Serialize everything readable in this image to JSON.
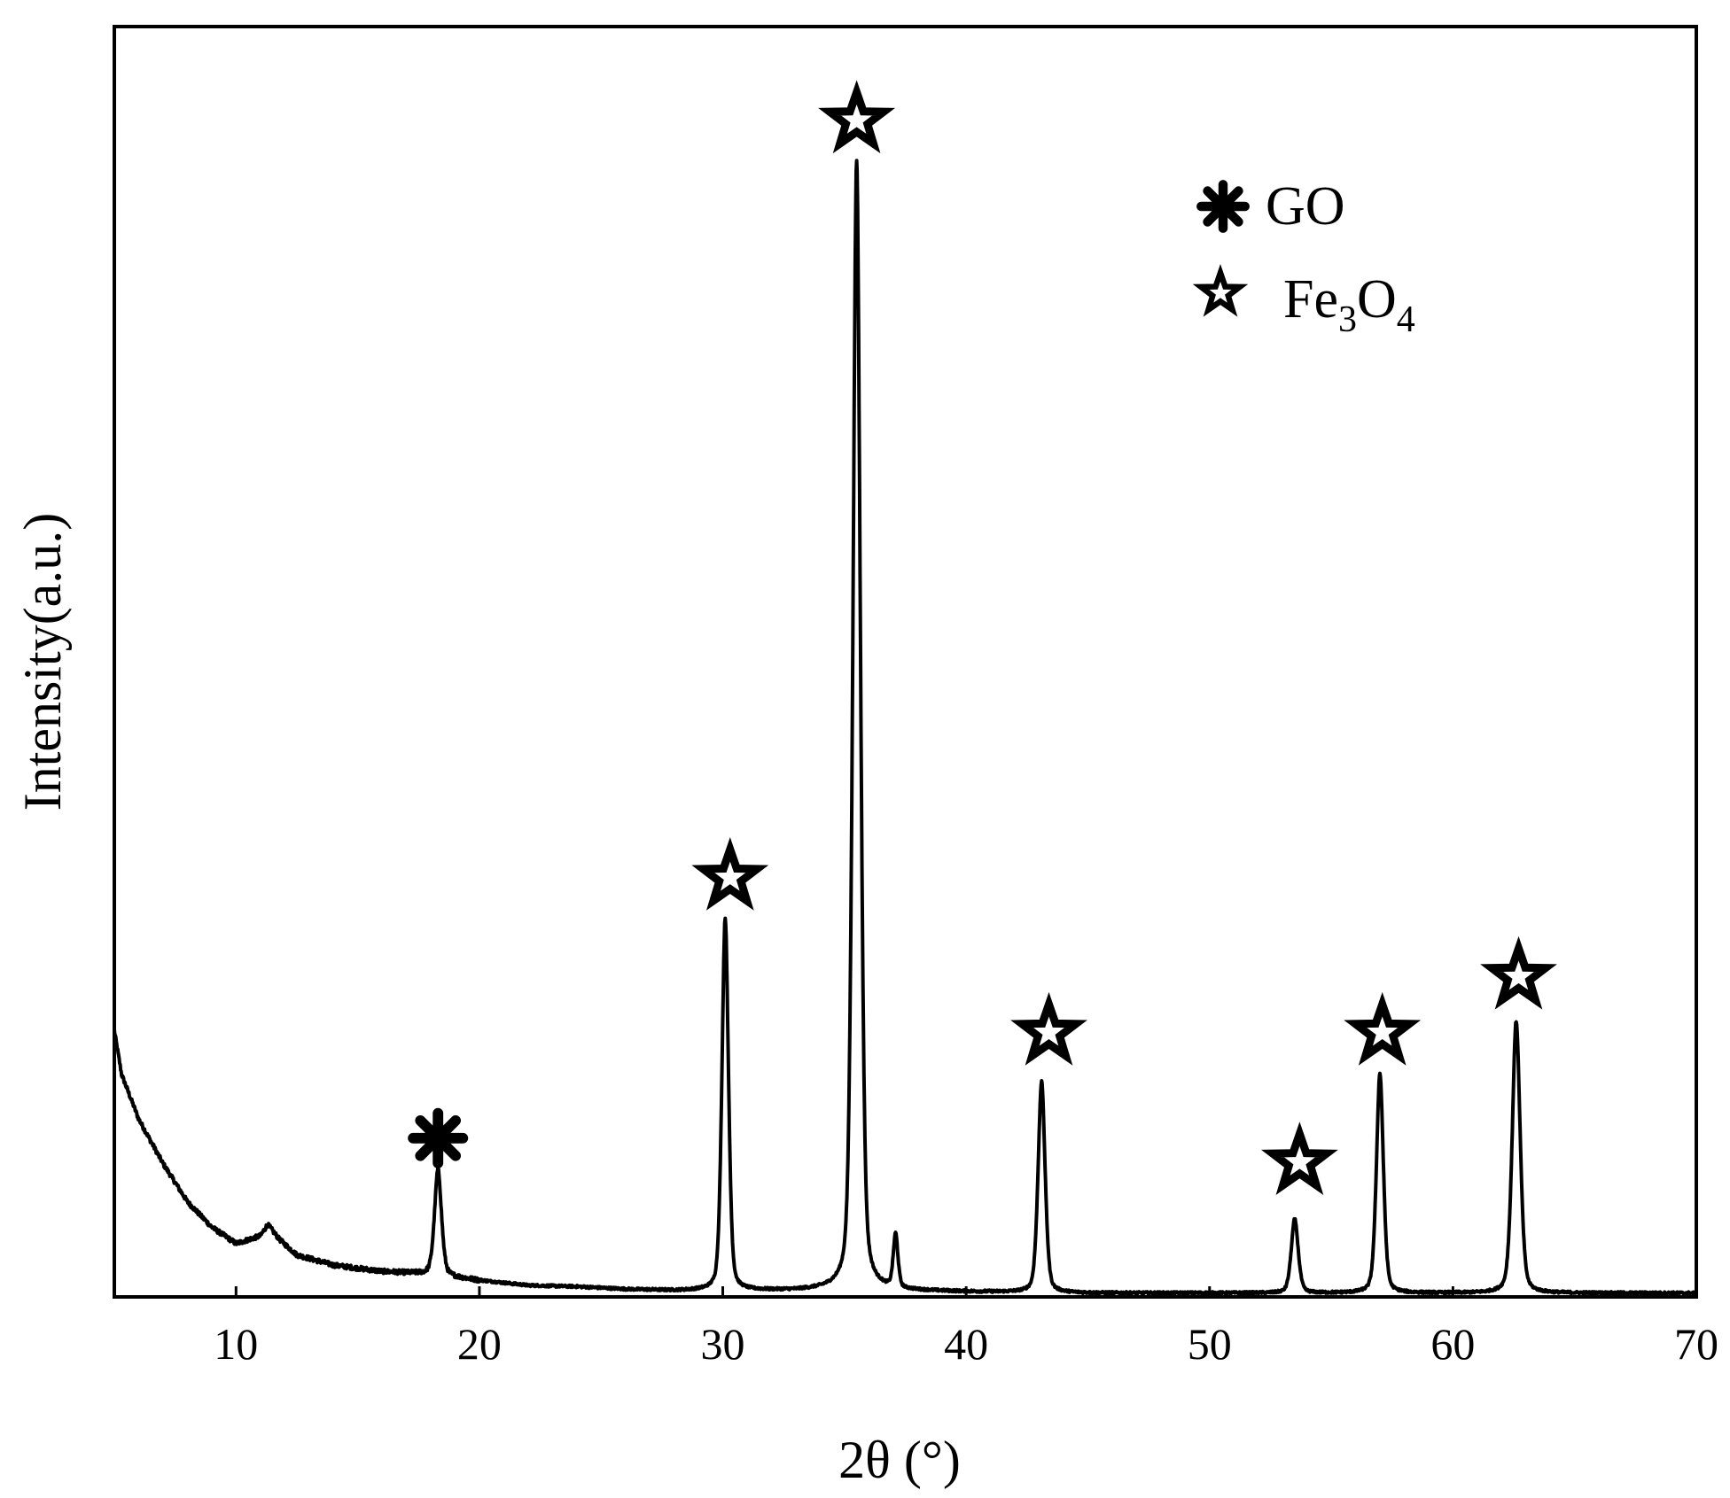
{
  "chart_data": {
    "type": "line",
    "title": "",
    "xlabel": "2θ (°)",
    "ylabel": "Intensity(a.u.)",
    "xlim": [
      5,
      70
    ],
    "ylim": [
      0,
      100
    ],
    "x_ticks": [
      10,
      20,
      30,
      40,
      50,
      60,
      70
    ],
    "y_ticks": [],
    "grid": false,
    "legend_position": "top-right",
    "legend": [
      {
        "marker": "asterisk-icon",
        "label": "GO"
      },
      {
        "marker": "star-icon",
        "label_main": "Fe",
        "label_sub1": "3",
        "label_mid": "O",
        "label_sub2": "4"
      }
    ],
    "baseline": [
      [
        5,
        21
      ],
      [
        5.3,
        17.5
      ],
      [
        6,
        14
      ],
      [
        7,
        10.5
      ],
      [
        8,
        7.5
      ],
      [
        9,
        5.5
      ],
      [
        10,
        4.2
      ],
      [
        11,
        4.8
      ],
      [
        11.3,
        5.7
      ],
      [
        11.8,
        4.5
      ],
      [
        12.5,
        3.3
      ],
      [
        14,
        2.5
      ],
      [
        16,
        2.0
      ],
      [
        18,
        1.8
      ],
      [
        20,
        1.3
      ],
      [
        22,
        0.9
      ],
      [
        24,
        0.8
      ],
      [
        26,
        0.6
      ],
      [
        28,
        0.5
      ],
      [
        30,
        0.5
      ],
      [
        33,
        0.5
      ],
      [
        35,
        0.6
      ],
      [
        37,
        0.5
      ],
      [
        40,
        0.4
      ],
      [
        45,
        0.3
      ],
      [
        50,
        0.3
      ],
      [
        55,
        0.3
      ],
      [
        60,
        0.3
      ],
      [
        65,
        0.3
      ],
      [
        70,
        0.3
      ]
    ],
    "peaks": [
      {
        "x": 18.3,
        "height": 8.3,
        "width": 0.15,
        "phase": "GO"
      },
      {
        "x": 30.1,
        "height": 29.3,
        "width": 0.14,
        "phase": "Fe3O4"
      },
      {
        "x": 35.5,
        "height": 88.9,
        "width": 0.16,
        "phase": "Fe3O4"
      },
      {
        "x": 37.1,
        "height": 4.2,
        "width": 0.1,
        "phase": ""
      },
      {
        "x": 43.1,
        "height": 16.6,
        "width": 0.15,
        "phase": "Fe3O4"
      },
      {
        "x": 53.5,
        "height": 5.8,
        "width": 0.15,
        "phase": "Fe3O4"
      },
      {
        "x": 57.0,
        "height": 17.3,
        "width": 0.15,
        "phase": "Fe3O4"
      },
      {
        "x": 62.6,
        "height": 21.4,
        "width": 0.17,
        "phase": "Fe3O4"
      }
    ],
    "markers": [
      {
        "x": 18.3,
        "y": 12.5,
        "symbol": "asterisk"
      },
      {
        "x": 30.3,
        "y": 33.0,
        "symbol": "star"
      },
      {
        "x": 35.5,
        "y": 92.6,
        "symbol": "star"
      },
      {
        "x": 43.4,
        "y": 20.8,
        "symbol": "star"
      },
      {
        "x": 53.7,
        "y": 10.6,
        "symbol": "star"
      },
      {
        "x": 57.1,
        "y": 20.8,
        "symbol": "star"
      },
      {
        "x": 62.7,
        "y": 25.2,
        "symbol": "star"
      }
    ],
    "colors": {
      "line": "#000000",
      "frame": "#000000",
      "background": "#ffffff"
    }
  }
}
